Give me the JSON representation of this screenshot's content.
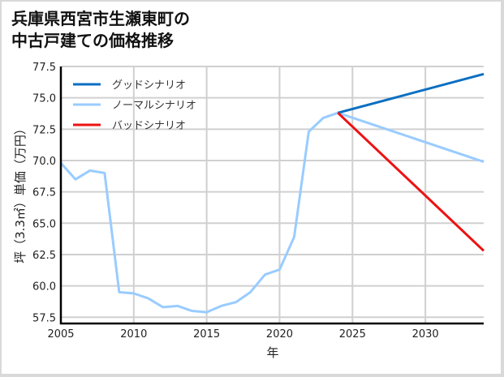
{
  "title": "兵庫県西宮市生瀬東町の\n中古戸建ての価格推移",
  "chart_data": {
    "type": "line",
    "title": "兵庫県西宮市生瀬東町の中古戸建ての価格推移",
    "xlabel": "年",
    "ylabel": "坪（3.3㎡）単価（万円）",
    "xlim": [
      2005,
      2034
    ],
    "ylim": [
      57.0,
      77.5
    ],
    "x_ticks": [
      2005,
      2010,
      2015,
      2020,
      2025,
      2030
    ],
    "y_ticks": [
      57.5,
      60.0,
      62.5,
      65.0,
      67.5,
      70.0,
      72.5,
      75.0,
      77.5
    ],
    "grid": true,
    "legend_position": "upper left",
    "series": [
      {
        "name": "グッドシナリオ",
        "color": "#0a6fc2",
        "x": [
          2024,
          2034
        ],
        "values": [
          73.8,
          76.9
        ]
      },
      {
        "name": "ノーマルシナリオ",
        "color": "#99ccff",
        "x": [
          2005,
          2006,
          2007,
          2008,
          2009,
          2010,
          2011,
          2012,
          2013,
          2014,
          2015,
          2016,
          2017,
          2018,
          2019,
          2020,
          2021,
          2022,
          2023,
          2024,
          2034
        ],
        "values": [
          69.8,
          68.5,
          69.2,
          69.0,
          59.5,
          59.4,
          59.0,
          58.3,
          58.4,
          58.0,
          57.9,
          58.4,
          58.7,
          59.5,
          60.9,
          61.3,
          63.9,
          72.3,
          73.4,
          73.8,
          69.9
        ]
      },
      {
        "name": "バッドシナリオ",
        "color": "#ee1111",
        "x": [
          2024,
          2034
        ],
        "values": [
          73.8,
          62.8
        ]
      }
    ]
  }
}
